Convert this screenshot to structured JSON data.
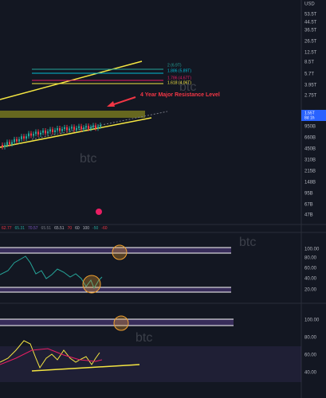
{
  "price_axis": {
    "currency": "USD",
    "labels": [
      "53.5T",
      "44.5T",
      "36.5T",
      "26.5T",
      "12.5T",
      "8.5T",
      "5.7T",
      "3.95T",
      "2.75T",
      "950B",
      "660B",
      "450B",
      "310B",
      "215B",
      "148B",
      "95B",
      "67B",
      "47B"
    ],
    "current": "1.55T",
    "countdown": "8d 1h"
  },
  "fib_levels": [
    "2 (6.9T)",
    "1.886 (5.89T)",
    "1.786 (4.67T)",
    "1.618 (4.06T)"
  ],
  "annotation": "4 Year Major Resistance Level",
  "watermark": "btc",
  "indicator_row": [
    "62.77",
    "65.31",
    "70.57",
    "65.51",
    "65.51",
    "70",
    "60",
    "100",
    "-50",
    "-60"
  ],
  "panel1_axis": [
    "100.00",
    "80.00",
    "60.00",
    "40.00",
    "20.00"
  ],
  "panel2_axis": [
    "100.00",
    "80.00",
    "60.00",
    "40.00"
  ]
}
